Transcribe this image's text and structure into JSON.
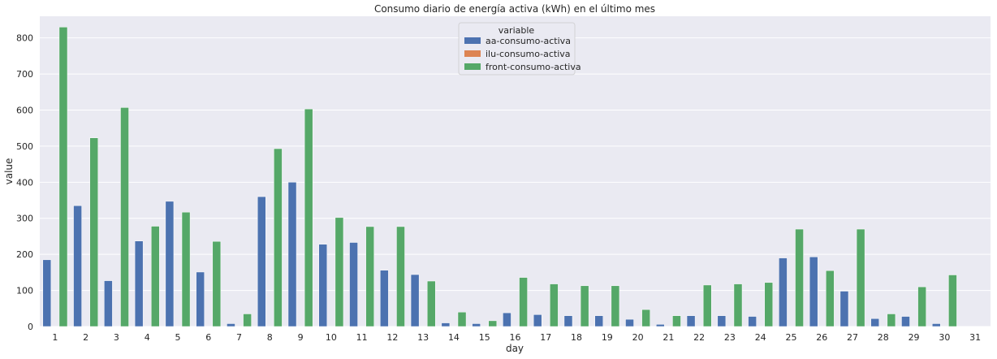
{
  "chart_data": {
    "type": "bar",
    "title": "Consumo diario de energía activa (kWh) en el último mes",
    "xlabel": "day",
    "ylabel": "value",
    "ylim": [
      0,
      860
    ],
    "yticks": [
      0,
      100,
      200,
      300,
      400,
      500,
      600,
      700,
      800
    ],
    "categories": [
      "1",
      "2",
      "3",
      "4",
      "5",
      "6",
      "7",
      "8",
      "9",
      "10",
      "11",
      "12",
      "13",
      "14",
      "15",
      "16",
      "17",
      "18",
      "19",
      "20",
      "21",
      "22",
      "23",
      "24",
      "25",
      "26",
      "27",
      "28",
      "29",
      "30",
      "31"
    ],
    "grid": true,
    "legend": {
      "title": "variable",
      "placement": "top-center"
    },
    "series": [
      {
        "name": "aa-consumo-activa",
        "color": "#4c72b0",
        "values": [
          185,
          335,
          127,
          237,
          347,
          151,
          8,
          360,
          400,
          228,
          233,
          156,
          144,
          10,
          8,
          38,
          33,
          30,
          30,
          20,
          6,
          30,
          30,
          28,
          190,
          193,
          98,
          22,
          28,
          8,
          0
        ]
      },
      {
        "name": "ilu-consumo-activa",
        "color": "#dd8452",
        "values": [
          0,
          0,
          0,
          0,
          0,
          0,
          0,
          0,
          0,
          0,
          0,
          0,
          0,
          0,
          0,
          0,
          0,
          0,
          0,
          0,
          0,
          0,
          0,
          0,
          0,
          0,
          0,
          0,
          0,
          0,
          0
        ]
      },
      {
        "name": "front-consumo-activa",
        "color": "#55a868",
        "values": [
          830,
          523,
          607,
          278,
          317,
          236,
          35,
          493,
          603,
          302,
          277,
          277,
          126,
          40,
          16,
          136,
          118,
          113,
          113,
          47,
          30,
          115,
          118,
          122,
          270,
          155,
          270,
          35,
          110,
          143,
          0
        ]
      }
    ]
  }
}
